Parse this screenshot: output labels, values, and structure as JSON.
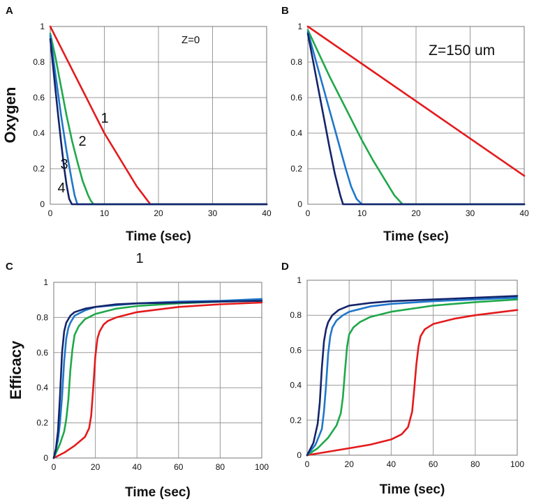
{
  "chart_data": [
    {
      "panel": "A",
      "type": "line",
      "annotation": "Z=0",
      "xlabel": "Time (sec)",
      "ylabel": "Oxygen",
      "xlim": [
        0,
        40
      ],
      "ylim": [
        0,
        1
      ],
      "xticks": [
        "0",
        "10",
        "20",
        "30",
        "40"
      ],
      "yticks": [
        "0",
        "0.2",
        "0.4",
        "0.6",
        "0.8",
        "1"
      ],
      "curve_labels": [
        "1",
        "2",
        "3",
        "4"
      ],
      "series": [
        {
          "name": "1",
          "color": "#e31a1c",
          "x": [
            0,
            2,
            4,
            6,
            8,
            10,
            12,
            14,
            16,
            17,
            18,
            18.5,
            40
          ],
          "y": [
            1,
            0.88,
            0.76,
            0.64,
            0.52,
            0.4,
            0.3,
            0.2,
            0.1,
            0.06,
            0.02,
            0,
            0
          ]
        },
        {
          "name": "2",
          "color": "#1fa84a",
          "x": [
            0,
            1,
            2,
            3,
            4,
            5,
            6,
            7,
            7.5,
            8,
            40
          ],
          "y": [
            0.96,
            0.82,
            0.66,
            0.5,
            0.36,
            0.24,
            0.13,
            0.05,
            0.02,
            0,
            0
          ]
        },
        {
          "name": "3",
          "color": "#1f77c9",
          "x": [
            0,
            1,
            2,
            3,
            4,
            4.5,
            5,
            40
          ],
          "y": [
            0.95,
            0.72,
            0.5,
            0.3,
            0.13,
            0.05,
            0,
            0
          ]
        },
        {
          "name": "4",
          "color": "#14246b",
          "x": [
            0,
            0.5,
            1,
            1.5,
            2,
            2.5,
            3,
            3.5,
            4,
            40
          ],
          "y": [
            0.93,
            0.78,
            0.63,
            0.49,
            0.35,
            0.22,
            0.11,
            0.03,
            0,
            0
          ]
        }
      ]
    },
    {
      "panel": "B",
      "type": "line",
      "annotation": "Z=150 um",
      "xlabel": "Time (sec)",
      "ylabel": "",
      "xlim": [
        0,
        40
      ],
      "ylim": [
        0,
        1
      ],
      "xticks": [
        "0",
        "10",
        "20",
        "30",
        "40"
      ],
      "yticks": [
        "0",
        "0.2",
        "0.4",
        "0.6",
        "0.8",
        "1"
      ],
      "series": [
        {
          "name": "1",
          "color": "#e31a1c",
          "x": [
            0,
            10,
            20,
            30,
            40
          ],
          "y": [
            1,
            0.79,
            0.58,
            0.37,
            0.16
          ]
        },
        {
          "name": "2",
          "color": "#1fa84a",
          "x": [
            0,
            2,
            4,
            6,
            8,
            10,
            12,
            14,
            16,
            17.5,
            40
          ],
          "y": [
            0.98,
            0.85,
            0.72,
            0.6,
            0.48,
            0.36,
            0.25,
            0.15,
            0.05,
            0,
            0
          ]
        },
        {
          "name": "3",
          "color": "#1f77c9",
          "x": [
            0,
            1,
            2,
            3,
            4,
            5,
            6,
            7,
            8,
            9,
            10,
            40
          ],
          "y": [
            0.97,
            0.86,
            0.75,
            0.64,
            0.53,
            0.42,
            0.31,
            0.2,
            0.1,
            0.03,
            0,
            0
          ]
        },
        {
          "name": "4",
          "color": "#14246b",
          "x": [
            0,
            1,
            2,
            3,
            4,
            5,
            6,
            6.5,
            40
          ],
          "y": [
            0.96,
            0.8,
            0.64,
            0.48,
            0.32,
            0.17,
            0.05,
            0,
            0
          ]
        }
      ]
    },
    {
      "panel": "C",
      "type": "line",
      "xlabel": "Time (sec)",
      "ylabel": "Efficacy",
      "xlim": [
        0,
        100
      ],
      "ylim": [
        0,
        1
      ],
      "xticks": [
        "0",
        "20",
        "40",
        "60",
        "80",
        "100"
      ],
      "yticks": [
        "0",
        "0.2",
        "0.4",
        "0.6",
        "0.8",
        "1"
      ],
      "stray_mark": "1",
      "series": [
        {
          "name": "1",
          "color": "#e31a1c",
          "x": [
            0,
            5,
            10,
            15,
            17,
            18,
            19,
            20,
            21,
            22,
            24,
            26,
            30,
            40,
            60,
            80,
            100
          ],
          "y": [
            0,
            0.03,
            0.07,
            0.12,
            0.17,
            0.24,
            0.4,
            0.58,
            0.68,
            0.72,
            0.76,
            0.78,
            0.8,
            0.83,
            0.86,
            0.875,
            0.885
          ]
        },
        {
          "name": "2",
          "color": "#1fa84a",
          "x": [
            0,
            3,
            5,
            6,
            7,
            8,
            9,
            10,
            12,
            15,
            20,
            30,
            40,
            60,
            80,
            100
          ],
          "y": [
            0,
            0.08,
            0.15,
            0.22,
            0.33,
            0.5,
            0.62,
            0.7,
            0.75,
            0.79,
            0.82,
            0.85,
            0.865,
            0.88,
            0.89,
            0.895
          ]
        },
        {
          "name": "3",
          "color": "#1f77c9",
          "x": [
            0,
            2,
            3,
            4,
            5,
            6,
            7,
            8,
            10,
            15,
            20,
            30,
            40,
            60,
            80,
            100
          ],
          "y": [
            0,
            0.1,
            0.2,
            0.35,
            0.55,
            0.68,
            0.74,
            0.77,
            0.81,
            0.84,
            0.86,
            0.87,
            0.88,
            0.89,
            0.895,
            0.905
          ]
        },
        {
          "name": "4",
          "color": "#14246b",
          "x": [
            0,
            1,
            2,
            3,
            4,
            5,
            6,
            8,
            10,
            15,
            20,
            30,
            40,
            60,
            80,
            100
          ],
          "y": [
            0,
            0.05,
            0.15,
            0.35,
            0.6,
            0.72,
            0.77,
            0.81,
            0.83,
            0.85,
            0.86,
            0.875,
            0.88,
            0.885,
            0.89,
            0.895
          ]
        }
      ]
    },
    {
      "panel": "D",
      "type": "line",
      "xlabel": "Time (sec)",
      "ylabel": "",
      "xlim": [
        0,
        100
      ],
      "ylim": [
        0,
        1
      ],
      "xticks": [
        "0",
        "20",
        "40",
        "60",
        "80",
        "100"
      ],
      "yticks": [
        "0",
        "0.2",
        "0.4",
        "0.6",
        "0.8",
        "1"
      ],
      "series": [
        {
          "name": "1",
          "color": "#e31a1c",
          "x": [
            0,
            10,
            20,
            30,
            40,
            45,
            48,
            50,
            51,
            52,
            53,
            54,
            56,
            60,
            70,
            80,
            90,
            100
          ],
          "y": [
            0,
            0.02,
            0.04,
            0.06,
            0.09,
            0.12,
            0.16,
            0.25,
            0.38,
            0.52,
            0.62,
            0.68,
            0.72,
            0.75,
            0.78,
            0.8,
            0.815,
            0.83
          ]
        },
        {
          "name": "2",
          "color": "#1fa84a",
          "x": [
            0,
            5,
            10,
            14,
            16,
            17,
            18,
            19,
            20,
            22,
            25,
            30,
            40,
            60,
            80,
            100
          ],
          "y": [
            0,
            0.04,
            0.1,
            0.17,
            0.24,
            0.33,
            0.48,
            0.62,
            0.69,
            0.73,
            0.76,
            0.79,
            0.82,
            0.855,
            0.875,
            0.89
          ]
        },
        {
          "name": "3",
          "color": "#1f77c9",
          "x": [
            0,
            4,
            7,
            8,
            9,
            10,
            11,
            12,
            14,
            17,
            20,
            30,
            40,
            60,
            80,
            100
          ],
          "y": [
            0,
            0.06,
            0.15,
            0.25,
            0.4,
            0.58,
            0.68,
            0.73,
            0.77,
            0.8,
            0.82,
            0.85,
            0.865,
            0.88,
            0.89,
            0.9
          ]
        },
        {
          "name": "4",
          "color": "#14246b",
          "x": [
            0,
            3,
            5,
            6,
            7,
            8,
            9,
            10,
            12,
            15,
            20,
            30,
            40,
            60,
            80,
            100
          ],
          "y": [
            0,
            0.07,
            0.18,
            0.3,
            0.5,
            0.65,
            0.72,
            0.76,
            0.8,
            0.83,
            0.855,
            0.87,
            0.88,
            0.89,
            0.9,
            0.91
          ]
        }
      ]
    }
  ]
}
